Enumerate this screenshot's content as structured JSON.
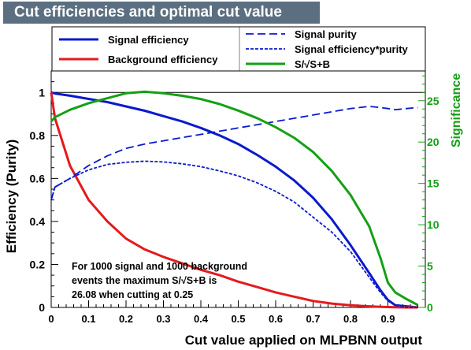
{
  "title": "Cut efficiencies and optimal cut value",
  "colors": {
    "signal": "#0a1acc",
    "background": "#e41a1c",
    "significance": "#14a014",
    "title_bg": "#5b6f81"
  },
  "annotation": {
    "line1": "For 1000 signal and 1000 background",
    "line2": "events the maximum S/√S+B is",
    "line3": "26.08 when cutting at  0.25"
  },
  "chart_data": {
    "type": "line",
    "title": "Cut efficiencies and optimal cut value",
    "xlabel": "Cut value applied on MLPBNN output",
    "ylabel": "Efficiency (Purity)",
    "y2label": "Significance",
    "xlim": [
      0,
      1
    ],
    "ylim": [
      0,
      1.1
    ],
    "y2lim": [
      0,
      28.6
    ],
    "x_ticks": [
      "0",
      "0.1",
      "0.2",
      "0.3",
      "0.4",
      "0.5",
      "0.6",
      "0.7",
      "0.8",
      "0.9"
    ],
    "y_ticks": [
      "0",
      "0.2",
      "0.4",
      "0.6",
      "0.8",
      "1"
    ],
    "y2_ticks": [
      "0",
      "5",
      "10",
      "15",
      "20",
      "25"
    ],
    "grid": false,
    "legend_position": "top",
    "x": [
      0,
      0.01,
      0.05,
      0.1,
      0.15,
      0.2,
      0.25,
      0.3,
      0.35,
      0.4,
      0.45,
      0.5,
      0.55,
      0.6,
      0.65,
      0.7,
      0.75,
      0.8,
      0.85,
      0.88,
      0.9,
      0.92,
      0.95,
      0.98
    ],
    "series": [
      {
        "name": "Signal efficiency",
        "axis": "left",
        "style": "solid",
        "values": [
          1.0,
          0.995,
          0.985,
          0.97,
          0.955,
          0.935,
          0.915,
          0.89,
          0.865,
          0.835,
          0.8,
          0.76,
          0.71,
          0.655,
          0.59,
          0.51,
          0.41,
          0.29,
          0.16,
          0.08,
          0.035,
          0.01,
          0.005,
          0.0
        ]
      },
      {
        "name": "Background efficiency",
        "axis": "left",
        "style": "solid",
        "values": [
          1.0,
          0.88,
          0.66,
          0.5,
          0.4,
          0.32,
          0.27,
          0.235,
          0.205,
          0.175,
          0.15,
          0.12,
          0.095,
          0.07,
          0.05,
          0.03,
          0.018,
          0.01,
          0.005,
          0.003,
          0.002,
          0.001,
          0.0,
          0.0
        ]
      },
      {
        "name": "Signal purity",
        "axis": "left",
        "style": "dashed",
        "values": [
          0.5,
          0.56,
          0.6,
          0.66,
          0.705,
          0.74,
          0.76,
          0.775,
          0.79,
          0.805,
          0.82,
          0.835,
          0.85,
          0.865,
          0.88,
          0.895,
          0.91,
          0.925,
          0.935,
          0.93,
          0.925,
          0.92,
          0.925,
          0.93
        ]
      },
      {
        "name": "Signal efficiency*purity",
        "axis": "left",
        "style": "dotted",
        "values": [
          0.5,
          0.56,
          0.6,
          0.64,
          0.665,
          0.675,
          0.68,
          0.677,
          0.668,
          0.655,
          0.635,
          0.612,
          0.58,
          0.54,
          0.49,
          0.42,
          0.35,
          0.26,
          0.14,
          0.07,
          0.03,
          0.01,
          0.0,
          0.0
        ]
      },
      {
        "name": "S/√S+B",
        "axis": "right",
        "style": "solid",
        "values": [
          22.5,
          23.0,
          23.9,
          24.7,
          25.3,
          25.9,
          26.08,
          25.9,
          25.6,
          25.2,
          24.6,
          23.8,
          22.9,
          21.8,
          20.5,
          18.8,
          16.5,
          13.6,
          9.8,
          6.0,
          3.0,
          1.8,
          1.0,
          0.3
        ]
      }
    ]
  }
}
